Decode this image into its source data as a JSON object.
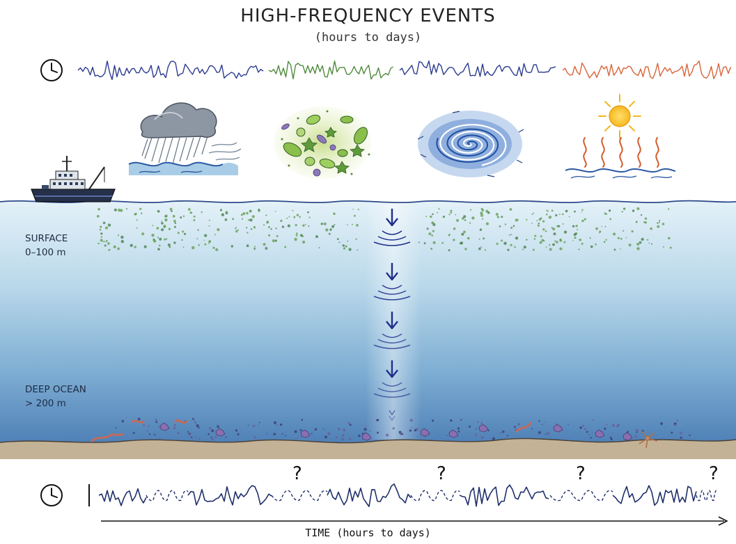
{
  "header": {
    "title": "HIGH-FREQUENCY EVENTS",
    "subtitle": "(hours to days)"
  },
  "depth_labels": {
    "surface_name": "SURFACE",
    "surface_range": "0–100 m",
    "deep_name": "DEEP OCEAN",
    "deep_range": "> 200 m"
  },
  "timeline": {
    "question_mark": "?",
    "axis_label": "TIME (hours to days)"
  },
  "events": [
    {
      "name": "storm",
      "color": "#2b3a8f"
    },
    {
      "name": "phytoplankton-bloom",
      "color": "#4f8a3a"
    },
    {
      "name": "eddy",
      "color": "#2b3a8f"
    },
    {
      "name": "heatwave",
      "color": "#d8643a"
    }
  ],
  "colors": {
    "ocean_top": "#d9ecf6",
    "ocean_bottom": "#4f84b8",
    "seafloor": "#c9b79a",
    "arrow": "#1f2f8a"
  },
  "icons": [
    "clock-icon",
    "ship-icon",
    "storm-cloud-icon",
    "phytoplankton-icon",
    "eddy-icon",
    "sun-heat-icon"
  ]
}
